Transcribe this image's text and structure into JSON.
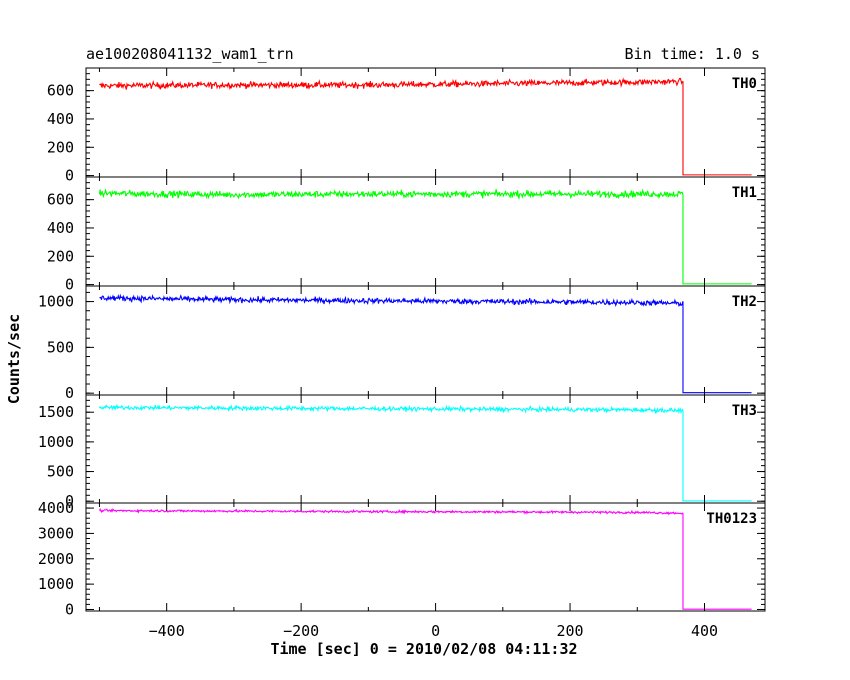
{
  "chart_data": {
    "type": "line",
    "title": "ae100208041132_wam1_trn",
    "bin_time_label": "Bin time: 1.0 s",
    "xlabel": "Time [sec] 0 = 2010/02/08 04:11:32",
    "ylabel": "Counts/sec",
    "xlim": [
      -520,
      490
    ],
    "xticks": [
      -400,
      -200,
      0,
      200,
      400
    ],
    "x_start": -500,
    "x_drop": 368,
    "x_end": 470,
    "panels": [
      {
        "name": "TH0",
        "color": "#ff0000",
        "ylim": [
          -10,
          760
        ],
        "yticks": [
          0,
          200,
          400,
          600
        ],
        "segments": [
          {
            "x": [
              -500,
              -300,
              -100,
              100,
              300,
              365
            ],
            "y": [
              635,
              640,
              640,
              650,
              660,
              665
            ]
          },
          {
            "x": [
              368,
              470
            ],
            "y": [
              5,
              5
            ]
          }
        ],
        "noise": 28
      },
      {
        "name": "TH1",
        "color": "#00ff00",
        "ylim": [
          -10,
          760
        ],
        "yticks": [
          0,
          200,
          400,
          600
        ],
        "segments": [
          {
            "x": [
              -500,
              -300,
              -100,
              100,
              300,
              365
            ],
            "y": [
              645,
              635,
              640,
              640,
              640,
              640
            ]
          },
          {
            "x": [
              368,
              470
            ],
            "y": [
              5,
              5
            ]
          }
        ],
        "noise": 30
      },
      {
        "name": "TH2",
        "color": "#0000ff",
        "ylim": [
          -20,
          1170
        ],
        "yticks": [
          0,
          500,
          1000
        ],
        "segments": [
          {
            "x": [
              -500,
              -300,
              -100,
              100,
              300,
              365
            ],
            "y": [
              1040,
              1020,
              1010,
              1000,
              990,
              980
            ]
          },
          {
            "x": [
              368,
              470
            ],
            "y": [
              5,
              5
            ]
          }
        ],
        "noise": 38
      },
      {
        "name": "TH3",
        "color": "#00ffff",
        "ylim": [
          -30,
          1790
        ],
        "yticks": [
          0,
          500,
          1000,
          1500
        ],
        "segments": [
          {
            "x": [
              -500,
              -300,
              -100,
              100,
              300,
              365
            ],
            "y": [
              1580,
              1570,
              1560,
              1550,
              1540,
              1530
            ]
          },
          {
            "x": [
              368,
              470
            ],
            "y": [
              5,
              5
            ]
          }
        ],
        "noise": 45
      },
      {
        "name": "TH0123",
        "color": "#ff00ff",
        "ylim": [
          -60,
          4200
        ],
        "yticks": [
          0,
          1000,
          2000,
          3000,
          4000
        ],
        "segments": [
          {
            "x": [
              -500,
              -300,
              -100,
              100,
              300,
              365
            ],
            "y": [
              3900,
              3880,
              3860,
              3850,
              3830,
              3800
            ]
          },
          {
            "x": [
              368,
              470
            ],
            "y": [
              10,
              10
            ]
          }
        ],
        "noise": 55
      }
    ]
  }
}
